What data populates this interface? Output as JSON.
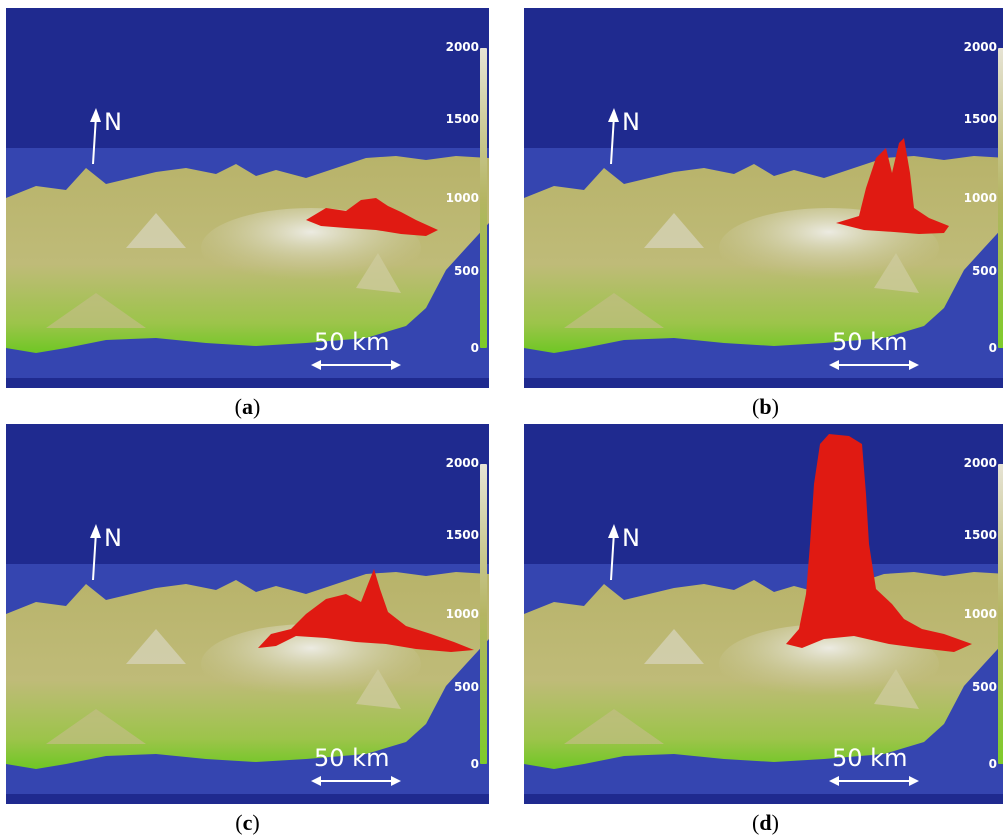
{
  "colors": {
    "background_blue": "#1f2a8f",
    "horizon_blue": "#3545b0",
    "terrain_low": "#7ecb2a",
    "terrain_mid": "#b5b563",
    "terrain_high": "#e6e3d4",
    "plume_red": "#e01a12"
  },
  "colorbar": {
    "ticks": [
      "2000",
      "1500",
      "1000",
      "500",
      "0"
    ],
    "gradient": [
      "#e6e3d4",
      "#b5b563",
      "#7ecb2a"
    ]
  },
  "north_label": "N",
  "scale_label": "50 km",
  "panels": [
    {
      "caption_prefix": "(",
      "caption_letter": "a",
      "caption_suffix": ")",
      "plume": "low-spread"
    },
    {
      "caption_prefix": "(",
      "caption_letter": "b",
      "caption_suffix": ")",
      "plume": "twin-spires"
    },
    {
      "caption_prefix": "(",
      "caption_letter": "c",
      "caption_suffix": ")",
      "plume": "wide-spike"
    },
    {
      "caption_prefix": "(",
      "caption_letter": "d",
      "caption_suffix": ")",
      "plume": "tall-column"
    }
  ]
}
